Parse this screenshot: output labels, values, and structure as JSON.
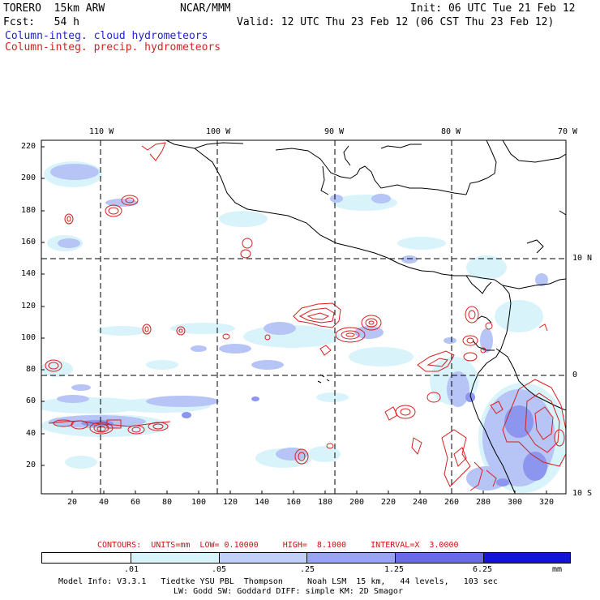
{
  "header": {
    "model": "TORERO  15km ARW",
    "org": "NCAR/MMM",
    "init": "Init: 06 UTC Tue 21 Feb 12",
    "fcst": "Fcst:   54 h",
    "valid": "Valid: 12 UTC Thu 23 Feb 12 (06 CST Thu 23 Feb 12)",
    "legend_blue": "Column-integ. cloud hydrometeors",
    "legend_red": "Column-integ. precip. hydrometeors"
  },
  "map": {
    "lon_labels": [
      "110 W",
      "100 W",
      "90 W",
      "80 W",
      "70 W"
    ],
    "lat_labels": [
      "10 N",
      "0",
      "10 S"
    ],
    "y_ticks": [
      "220",
      "200",
      "180",
      "160",
      "140",
      "120",
      "100",
      "80",
      "60",
      "40",
      "20"
    ],
    "x_ticks": [
      "20",
      "40",
      "60",
      "80",
      "100",
      "120",
      "140",
      "160",
      "180",
      "200",
      "220",
      "240",
      "260",
      "280",
      "300",
      "320"
    ]
  },
  "contours_line": "CONTOURS:  UNITS=mm  LOW= 0.10000     HIGH=  8.1000     INTERVAL=X  3.0000",
  "colorbar": {
    "labels": [
      ".01",
      ".05",
      ".25",
      "1.25",
      "6.25",
      "mm"
    ],
    "colors": [
      "#ffffff",
      "#d8f4fa",
      "#c0d0f8",
      "#9aa4f4",
      "#6a6ae8",
      "#3a3ae0",
      "#1414d8"
    ]
  },
  "footer": {
    "line1": "Model Info: V3.3.1   Tiedtke YSU PBL  Thompson     Noah LSM  15 km,   44 levels,   103 sec",
    "line2": "LW: Godd SW: Goddard DIFF: simple KM: 2D Smagor"
  }
}
